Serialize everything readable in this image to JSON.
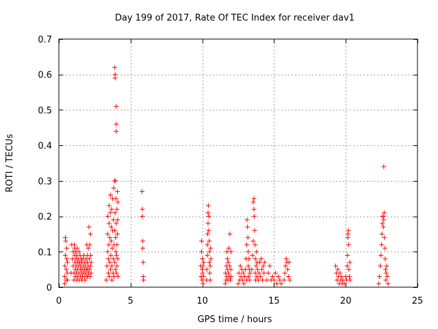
{
  "chart_data": {
    "type": "scatter",
    "title": "Day 199 of 2017, Rate Of TEC Index for receiver dav1",
    "xlabel": "GPS time / hours",
    "ylabel": "ROTI / TECUs",
    "xlim": [
      0,
      25
    ],
    "ylim": [
      0,
      0.7
    ],
    "xticks": [
      0,
      5,
      10,
      15,
      20,
      25
    ],
    "yticks": [
      0,
      0.1,
      0.2,
      0.3,
      0.4,
      0.5,
      0.6,
      0.7
    ],
    "xtick_labels": [
      "0",
      "5",
      "10",
      "15",
      "20",
      "25"
    ],
    "ytick_labels": [
      "0",
      "0.1",
      "0.2",
      "0.3",
      "0.4",
      "0.5",
      "0.6",
      "0.7"
    ],
    "grid": true,
    "marker": "+",
    "marker_color": "#ff0000",
    "series": [
      {
        "name": "dav1",
        "points": [
          [
            0.4,
            0.01
          ],
          [
            0.4,
            0.03
          ],
          [
            0.42,
            0.06
          ],
          [
            0.45,
            0.09
          ],
          [
            0.45,
            0.14
          ],
          [
            0.48,
            0.13
          ],
          [
            0.5,
            0.02
          ],
          [
            0.52,
            0.05
          ],
          [
            0.55,
            0.08
          ],
          [
            0.55,
            0.11
          ],
          [
            0.58,
            0.04
          ],
          [
            0.6,
            0.02
          ],
          [
            0.6,
            0.07
          ],
          [
            0.85,
            0.04
          ],
          [
            0.9,
            0.12
          ],
          [
            0.95,
            0.08
          ],
          [
            1.0,
            0.1
          ],
          [
            1.0,
            0.06
          ],
          [
            1.05,
            0.02
          ],
          [
            1.05,
            0.04
          ],
          [
            1.08,
            0.12
          ],
          [
            1.1,
            0.11
          ],
          [
            1.1,
            0.09
          ],
          [
            1.12,
            0.07
          ],
          [
            1.15,
            0.05
          ],
          [
            1.15,
            0.03
          ],
          [
            1.18,
            0.1
          ],
          [
            1.2,
            0.08
          ],
          [
            1.2,
            0.06
          ],
          [
            1.22,
            0.04
          ],
          [
            1.25,
            0.02
          ],
          [
            1.25,
            0.09
          ],
          [
            1.28,
            0.11
          ],
          [
            1.3,
            0.07
          ],
          [
            1.3,
            0.05
          ],
          [
            1.32,
            0.03
          ],
          [
            1.35,
            0.08
          ],
          [
            1.38,
            0.06
          ],
          [
            1.4,
            0.04
          ],
          [
            1.4,
            0.1
          ],
          [
            1.42,
            0.02
          ],
          [
            1.45,
            0.07
          ],
          [
            1.48,
            0.09
          ],
          [
            1.5,
            0.05
          ],
          [
            1.5,
            0.03
          ],
          [
            1.52,
            0.06
          ],
          [
            1.55,
            0.08
          ],
          [
            1.58,
            0.04
          ],
          [
            1.6,
            0.02
          ],
          [
            1.6,
            0.07
          ],
          [
            1.62,
            0.05
          ],
          [
            1.65,
            0.03
          ],
          [
            1.68,
            0.08
          ],
          [
            1.7,
            0.06
          ],
          [
            1.72,
            0.04
          ],
          [
            1.75,
            0.09
          ],
          [
            1.78,
            0.05
          ],
          [
            1.8,
            0.03
          ],
          [
            1.8,
            0.07
          ],
          [
            1.82,
            0.02
          ],
          [
            1.85,
            0.06
          ],
          [
            1.88,
            0.04
          ],
          [
            1.9,
            0.08
          ],
          [
            1.92,
            0.05
          ],
          [
            1.95,
            0.03
          ],
          [
            1.95,
            0.12
          ],
          [
            1.98,
            0.07
          ],
          [
            2.0,
            0.05
          ],
          [
            2.0,
            0.09
          ],
          [
            2.02,
            0.03
          ],
          [
            2.05,
            0.06
          ],
          [
            2.05,
            0.11
          ],
          [
            2.08,
            0.04
          ],
          [
            2.1,
            0.17
          ],
          [
            2.12,
            0.08
          ],
          [
            2.15,
            0.05
          ],
          [
            2.15,
            0.12
          ],
          [
            2.18,
            0.03
          ],
          [
            2.2,
            0.06
          ],
          [
            2.2,
            0.15
          ],
          [
            2.22,
            0.09
          ],
          [
            2.25,
            0.04
          ],
          [
            2.25,
            0.07
          ],
          [
            3.3,
            0.02
          ],
          [
            3.35,
            0.06
          ],
          [
            3.4,
            0.1
          ],
          [
            3.4,
            0.15
          ],
          [
            3.42,
            0.2
          ],
          [
            3.45,
            0.04
          ],
          [
            3.45,
            0.08
          ],
          [
            3.48,
            0.12
          ],
          [
            3.5,
            0.18
          ],
          [
            3.5,
            0.23
          ],
          [
            3.52,
            0.03
          ],
          [
            3.55,
            0.07
          ],
          [
            3.55,
            0.14
          ],
          [
            3.58,
            0.21
          ],
          [
            3.6,
            0.26
          ],
          [
            3.6,
            0.05
          ],
          [
            3.62,
            0.09
          ],
          [
            3.65,
            0.13
          ],
          [
            3.65,
            0.17
          ],
          [
            3.68,
            0.22
          ],
          [
            3.7,
            0.02
          ],
          [
            3.7,
            0.06
          ],
          [
            3.72,
            0.11
          ],
          [
            3.75,
            0.16
          ],
          [
            3.75,
            0.25
          ],
          [
            3.78,
            0.04
          ],
          [
            3.8,
            0.08
          ],
          [
            3.8,
            0.19
          ],
          [
            3.82,
            0.28
          ],
          [
            3.85,
            0.03
          ],
          [
            3.85,
            0.12
          ],
          [
            3.88,
            0.3
          ],
          [
            3.9,
            0.07
          ],
          [
            3.9,
            0.16
          ],
          [
            3.9,
            0.62
          ],
          [
            3.92,
            0.6
          ],
          [
            3.92,
            0.59
          ],
          [
            3.92,
            0.21
          ],
          [
            3.95,
            0.05
          ],
          [
            3.95,
            0.14
          ],
          [
            3.95,
            0.3
          ],
          [
            3.98,
            0.1
          ],
          [
            3.98,
            0.25
          ],
          [
            4.0,
            0.51
          ],
          [
            4.0,
            0.46
          ],
          [
            4.0,
            0.44
          ],
          [
            4.0,
            0.18
          ],
          [
            4.02,
            0.04
          ],
          [
            4.02,
            0.09
          ],
          [
            4.05,
            0.22
          ],
          [
            4.05,
            0.12
          ],
          [
            4.05,
            0.06
          ],
          [
            4.08,
            0.27
          ],
          [
            4.08,
            0.15
          ],
          [
            4.1,
            0.19
          ],
          [
            4.1,
            0.08
          ],
          [
            4.12,
            0.24
          ],
          [
            4.12,
            0.03
          ],
          [
            5.8,
            0.27
          ],
          [
            5.82,
            0.22
          ],
          [
            5.82,
            0.2
          ],
          [
            5.85,
            0.13
          ],
          [
            5.85,
            0.11
          ],
          [
            5.88,
            0.07
          ],
          [
            5.88,
            0.03
          ],
          [
            5.9,
            0.02
          ],
          [
            9.9,
            0.06
          ],
          [
            9.92,
            0.03
          ],
          [
            9.95,
            0.1
          ],
          [
            9.95,
            0.13
          ],
          [
            9.98,
            0.02
          ],
          [
            10.0,
            0.05
          ],
          [
            10.0,
            0.08
          ],
          [
            10.02,
            0.04
          ],
          [
            10.05,
            0.01
          ],
          [
            10.05,
            0.06
          ],
          [
            10.08,
            0.03
          ],
          [
            10.1,
            0.07
          ],
          [
            10.3,
            0.02
          ],
          [
            10.32,
            0.05
          ],
          [
            10.35,
            0.09
          ],
          [
            10.35,
            0.12
          ],
          [
            10.38,
            0.15
          ],
          [
            10.4,
            0.18
          ],
          [
            10.4,
            0.21
          ],
          [
            10.42,
            0.23
          ],
          [
            10.45,
            0.2
          ],
          [
            10.45,
            0.16
          ],
          [
            10.48,
            0.13
          ],
          [
            10.5,
            0.1
          ],
          [
            10.5,
            0.07
          ],
          [
            10.52,
            0.04
          ],
          [
            10.55,
            0.02
          ],
          [
            10.55,
            0.06
          ],
          [
            10.58,
            0.11
          ],
          [
            10.6,
            0.08
          ],
          [
            11.6,
            0.01
          ],
          [
            11.62,
            0.04
          ],
          [
            11.65,
            0.02
          ],
          [
            11.68,
            0.06
          ],
          [
            11.7,
            0.03
          ],
          [
            11.72,
            0.1
          ],
          [
            11.75,
            0.08
          ],
          [
            11.75,
            0.05
          ],
          [
            11.78,
            0.02
          ],
          [
            11.8,
            0.07
          ],
          [
            11.82,
            0.04
          ],
          [
            11.85,
            0.11
          ],
          [
            11.88,
            0.03
          ],
          [
            11.9,
            0.06
          ],
          [
            11.92,
            0.15
          ],
          [
            11.95,
            0.02
          ],
          [
            11.98,
            0.05
          ],
          [
            12.0,
            0.1
          ],
          [
            12.0,
            0.03
          ],
          [
            12.5,
            0.01
          ],
          [
            12.55,
            0.04
          ],
          [
            12.6,
            0.02
          ],
          [
            12.65,
            0.06
          ],
          [
            12.7,
            0.03
          ],
          [
            12.75,
            0.05
          ],
          [
            12.8,
            0.02
          ],
          [
            12.85,
            0.04
          ],
          [
            12.9,
            0.01
          ],
          [
            12.95,
            0.03
          ],
          [
            13.0,
            0.05
          ],
          [
            13.05,
            0.08
          ],
          [
            13.1,
            0.12
          ],
          [
            13.1,
            0.02
          ],
          [
            13.12,
            0.19
          ],
          [
            13.15,
            0.17
          ],
          [
            13.18,
            0.14
          ],
          [
            13.2,
            0.1
          ],
          [
            13.2,
            0.06
          ],
          [
            13.22,
            0.03
          ],
          [
            13.25,
            0.08
          ],
          [
            13.28,
            0.05
          ],
          [
            13.3,
            0.02
          ],
          [
            13.32,
            0.04
          ],
          [
            13.45,
            0.05
          ],
          [
            13.5,
            0.09
          ],
          [
            13.55,
            0.13
          ],
          [
            13.55,
            0.24
          ],
          [
            13.6,
            0.25
          ],
          [
            13.6,
            0.22
          ],
          [
            13.62,
            0.2
          ],
          [
            13.65,
            0.16
          ],
          [
            13.68,
            0.12
          ],
          [
            13.7,
            0.08
          ],
          [
            13.7,
            0.04
          ],
          [
            13.72,
            0.02
          ],
          [
            13.75,
            0.06
          ],
          [
            13.78,
            0.1
          ],
          [
            13.8,
            0.03
          ],
          [
            13.82,
            0.07
          ],
          [
            13.85,
            0.05
          ],
          [
            13.9,
            0.02
          ],
          [
            13.95,
            0.04
          ],
          [
            14.0,
            0.07
          ],
          [
            14.05,
            0.03
          ],
          [
            14.1,
            0.08
          ],
          [
            14.15,
            0.05
          ],
          [
            14.2,
            0.02
          ],
          [
            14.25,
            0.06
          ],
          [
            14.3,
            0.04
          ],
          [
            14.35,
            0.07
          ],
          [
            14.5,
            0.02
          ],
          [
            14.6,
            0.04
          ],
          [
            14.7,
            0.06
          ],
          [
            14.8,
            0.02
          ],
          [
            14.9,
            0.03
          ],
          [
            15.0,
            0.02
          ],
          [
            15.1,
            0.04
          ],
          [
            15.2,
            0.01
          ],
          [
            15.3,
            0.03
          ],
          [
            15.4,
            0.02
          ],
          [
            15.5,
            0.01
          ],
          [
            15.7,
            0.02
          ],
          [
            15.75,
            0.04
          ],
          [
            15.8,
            0.06
          ],
          [
            15.85,
            0.08
          ],
          [
            15.9,
            0.07
          ],
          [
            15.95,
            0.05
          ],
          [
            16.0,
            0.03
          ],
          [
            16.05,
            0.07
          ],
          [
            16.1,
            0.02
          ],
          [
            19.3,
            0.06
          ],
          [
            19.35,
            0.04
          ],
          [
            19.4,
            0.02
          ],
          [
            19.45,
            0.05
          ],
          [
            19.5,
            0.03
          ],
          [
            19.55,
            0.01
          ],
          [
            19.6,
            0.04
          ],
          [
            19.65,
            0.02
          ],
          [
            19.7,
            0.03
          ],
          [
            19.75,
            0.01
          ],
          [
            19.8,
            0.02
          ],
          [
            19.9,
            0.01
          ],
          [
            20.0,
            0.03
          ],
          [
            20.05,
            0.02
          ],
          [
            20.1,
            0.06
          ],
          [
            20.12,
            0.09
          ],
          [
            20.15,
            0.15
          ],
          [
            20.15,
            0.14
          ],
          [
            20.18,
            0.16
          ],
          [
            20.2,
            0.12
          ],
          [
            20.22,
            0.05
          ],
          [
            20.25,
            0.03
          ],
          [
            20.28,
            0.07
          ],
          [
            20.3,
            0.02
          ],
          [
            22.3,
            0.01
          ],
          [
            22.35,
            0.03
          ],
          [
            22.4,
            0.06
          ],
          [
            22.45,
            0.09
          ],
          [
            22.5,
            0.12
          ],
          [
            22.52,
            0.15
          ],
          [
            22.55,
            0.18
          ],
          [
            22.58,
            0.2
          ],
          [
            22.6,
            0.2
          ],
          [
            22.62,
            0.17
          ],
          [
            22.65,
            0.19
          ],
          [
            22.65,
            0.34
          ],
          [
            22.68,
            0.21
          ],
          [
            22.7,
            0.14
          ],
          [
            22.72,
            0.11
          ],
          [
            22.75,
            0.08
          ],
          [
            22.78,
            0.05
          ],
          [
            22.8,
            0.02
          ],
          [
            22.82,
            0.04
          ],
          [
            22.85,
            0.06
          ],
          [
            22.9,
            0.03
          ],
          [
            22.95,
            0.01
          ]
        ]
      }
    ]
  }
}
